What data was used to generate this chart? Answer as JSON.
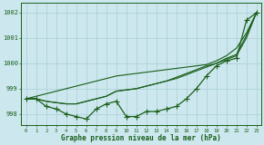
{
  "title": "Graphe pression niveau de la mer (hPa)",
  "hours": [
    0,
    1,
    2,
    3,
    4,
    5,
    6,
    7,
    8,
    9,
    10,
    11,
    12,
    13,
    14,
    15,
    16,
    17,
    18,
    19,
    20,
    21,
    22,
    23
  ],
  "series_straight": [
    998.6,
    998.7,
    998.8,
    998.9,
    999.0,
    999.1,
    999.2,
    999.3,
    999.4,
    999.5,
    999.55,
    999.6,
    999.65,
    999.7,
    999.75,
    999.8,
    999.85,
    999.9,
    999.95,
    1000.1,
    1000.3,
    1000.6,
    1001.2,
    1002.0
  ],
  "series_mid1": [
    998.6,
    998.6,
    998.5,
    998.45,
    998.4,
    998.4,
    998.5,
    998.6,
    998.7,
    998.9,
    998.95,
    999.0,
    999.1,
    999.2,
    999.3,
    999.4,
    999.55,
    999.7,
    999.85,
    1000.0,
    1000.15,
    1000.3,
    1001.0,
    1002.0
  ],
  "series_mid2": [
    998.6,
    998.6,
    998.5,
    998.45,
    998.4,
    998.4,
    998.5,
    998.6,
    998.7,
    998.9,
    998.95,
    999.0,
    999.1,
    999.2,
    999.3,
    999.45,
    999.6,
    999.75,
    999.9,
    1000.0,
    1000.2,
    1000.35,
    1001.1,
    1002.0
  ],
  "series_zigzag": [
    998.6,
    998.6,
    998.3,
    998.2,
    998.0,
    997.9,
    997.8,
    998.2,
    998.4,
    998.5,
    997.9,
    997.9,
    998.1,
    998.1,
    998.2,
    998.3,
    998.6,
    999.0,
    999.5,
    999.9,
    1000.1,
    1000.2,
    1001.7,
    1002.0
  ],
  "bg_color": "#cce8ee",
  "grid_color": "#a8cdd4",
  "line_color": "#1a5e1a",
  "ylim_min": 997.55,
  "ylim_max": 1002.4,
  "yticks": [
    998,
    999,
    1000,
    1001,
    1002
  ],
  "marker_size": 2.5,
  "line_width": 0.9
}
